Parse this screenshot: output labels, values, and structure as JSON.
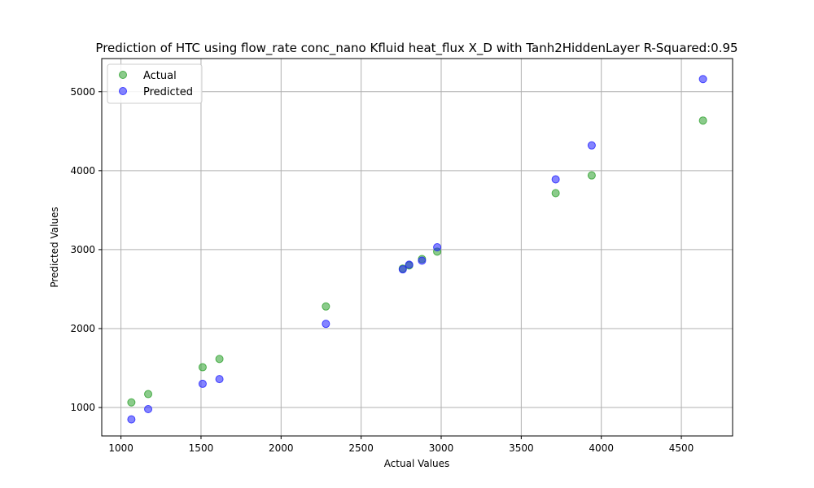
{
  "chart_data": {
    "type": "scatter",
    "title": "Prediction of HTC using flow_rate conc_nano Kfluid heat_flux X_D with Tanh2HiddenLayer  R-Squared:0.95",
    "xlabel": "Actual Values",
    "ylabel": "Predicted Values",
    "xlim": [
      880,
      4820
    ],
    "ylim": [
      640,
      5420
    ],
    "xticks": [
      1000,
      1500,
      2000,
      2500,
      3000,
      3500,
      4000,
      4500
    ],
    "yticks": [
      1000,
      2000,
      3000,
      4000,
      5000
    ],
    "grid": true,
    "legend_position": "top-left",
    "series": [
      {
        "name": "Actual",
        "color": "#2ca02c",
        "x": [
          1065,
          1170,
          1510,
          1615,
          2280,
          2760,
          2800,
          2880,
          2975,
          3715,
          3940,
          4635
        ],
        "y": [
          1065,
          1170,
          1510,
          1615,
          2280,
          2760,
          2800,
          2880,
          2975,
          3715,
          3940,
          4635
        ]
      },
      {
        "name": "Predicted",
        "color": "#1f1fff",
        "x": [
          1065,
          1170,
          1510,
          1615,
          2280,
          2760,
          2800,
          2880,
          2975,
          3715,
          3940,
          4635
        ],
        "y": [
          850,
          980,
          1300,
          1360,
          2060,
          2750,
          2810,
          2860,
          3030,
          3890,
          4320,
          5160
        ]
      }
    ]
  }
}
